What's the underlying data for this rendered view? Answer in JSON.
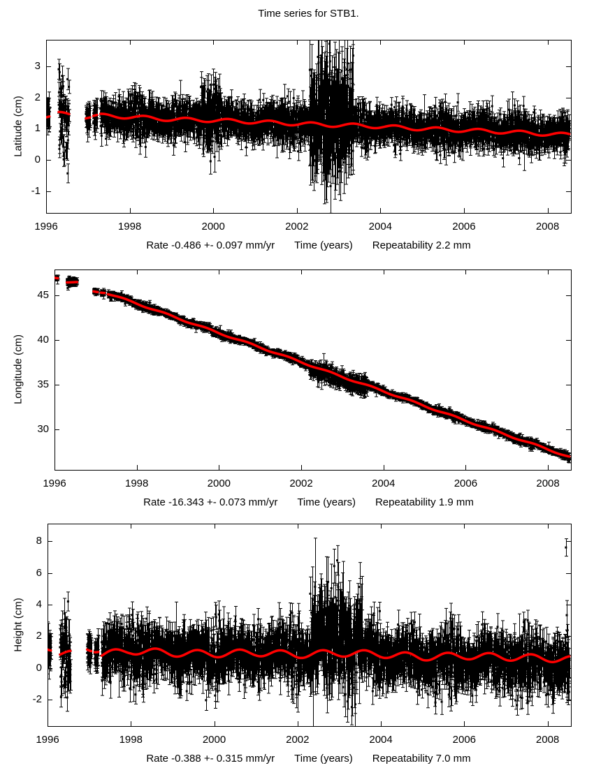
{
  "title": "Time series for STB1.",
  "colors": {
    "background": "#ffffff",
    "axis": "#000000",
    "points": "#000000",
    "trend_line": "#ff0000"
  },
  "chart_data": [
    {
      "id": "latitude",
      "type": "scatter",
      "ylabel": "Latitude (cm)",
      "xlabel": "Time (years)",
      "rate_label": "Rate -0.486 +- 0.097 mm/yr",
      "repeatability_label": "Repeatability 2.2 mm",
      "xlim": [
        1996,
        2008.56
      ],
      "ylim": [
        -1.7,
        3.85
      ],
      "xticks": [
        1996,
        1998,
        2000,
        2002,
        2004,
        2006,
        2008
      ],
      "yticks": [
        -1,
        0,
        1,
        2,
        3
      ],
      "trend": {
        "x": [
          1996.0,
          1996.08,
          1996.3,
          1996.55,
          1996.95,
          1997.05,
          1997.13,
          1997.22,
          1997.3,
          1998,
          1999,
          2000,
          2001,
          2002,
          2002.8,
          2003.5,
          2004,
          2005,
          2006,
          2007,
          2008,
          2008.52
        ],
        "y": [
          1.4,
          1.4,
          1.48,
          1.45,
          1.38,
          1.38,
          1.4,
          1.4,
          1.42,
          1.38,
          1.3,
          1.27,
          1.22,
          1.16,
          1.12,
          1.1,
          1.07,
          1.0,
          0.95,
          0.9,
          0.83,
          0.8
        ],
        "seasonal_amp": 0.06,
        "seasonal_phase": 0.1
      },
      "scatter": {
        "points_per_year": 250,
        "sigma": 0.28,
        "errorbar": 0.27,
        "segments": [
          {
            "x0": 1996.0,
            "x1": 1996.08,
            "sigma_mult": 0.7
          },
          {
            "x0": 1996.3,
            "x1": 1996.55,
            "sigma_mult": 1.9
          },
          {
            "x0": 1996.95,
            "x1": 1997.05,
            "sigma_mult": 0.7
          },
          {
            "x0": 1997.13,
            "x1": 1997.22,
            "sigma_mult": 0.7
          },
          {
            "x0": 1997.3,
            "x1": 2008.52,
            "sigma_mult": 1.0
          }
        ],
        "noisy_periods": [
          {
            "x0": 2002.3,
            "x1": 2003.35,
            "sigma_mult": 3.2,
            "err_mult": 3.2,
            "bias": 0.25
          },
          {
            "x0": 1999.7,
            "x1": 2000.15,
            "sigma_mult": 1.7,
            "err_mult": 1.5,
            "bias": 0.15
          }
        ]
      },
      "outliers": []
    },
    {
      "id": "longitude",
      "type": "scatter",
      "ylabel": "Longitude (cm)",
      "xlabel": "Time (years)",
      "rate_label": "Rate -16.343 +- 0.073 mm/yr",
      "repeatability_label": "Repeatability 1.9 mm",
      "xlim": [
        1996,
        2008.56
      ],
      "ylim": [
        25.5,
        47.9
      ],
      "xticks": [
        1996,
        1998,
        2000,
        2002,
        2004,
        2006,
        2008
      ],
      "yticks": [
        30,
        35,
        40,
        45
      ],
      "trend": {
        "x": [
          1996.0,
          1996.08,
          1996.3,
          1996.55,
          1996.95,
          1997.05,
          1997.13,
          1997.22,
          1997.3,
          1998,
          1999,
          2000,
          2001,
          2002,
          2003,
          2004,
          2005,
          2006,
          2007,
          2008,
          2008.52
        ],
        "y": [
          47.0,
          46.98,
          46.52,
          46.45,
          45.45,
          45.42,
          45.38,
          45.35,
          45.2,
          44.1,
          42.45,
          40.8,
          39.2,
          37.55,
          35.9,
          34.3,
          32.65,
          31.0,
          29.4,
          27.8,
          26.95
        ],
        "seasonal_amp": 0.08,
        "seasonal_phase": 0.45
      },
      "scatter": {
        "points_per_year": 250,
        "sigma": 0.18,
        "errorbar": 0.2,
        "segments": [
          {
            "x0": 1996.0,
            "x1": 1996.08,
            "sigma_mult": 0.6
          },
          {
            "x0": 1996.3,
            "x1": 1996.55,
            "sigma_mult": 0.9
          },
          {
            "x0": 1996.95,
            "x1": 1997.05,
            "sigma_mult": 0.7
          },
          {
            "x0": 1997.13,
            "x1": 1997.22,
            "sigma_mult": 0.7
          },
          {
            "x0": 1997.3,
            "x1": 2008.52,
            "sigma_mult": 1.0
          }
        ],
        "noisy_periods": [
          {
            "x0": 2002.2,
            "x1": 2003.6,
            "sigma_mult": 2.6,
            "err_mult": 2.4,
            "bias": -0.3
          }
        ]
      },
      "outliers": [
        {
          "x": 2007.55,
          "y": 27.9,
          "err": 0.3
        }
      ]
    },
    {
      "id": "height",
      "type": "scatter",
      "ylabel": "Height (cm)",
      "xlabel": "Time (years)",
      "rate_label": "Rate -0.388 +- 0.315 mm/yr",
      "repeatability_label": "Repeatability 7.0 mm",
      "xlim": [
        1996,
        2008.56
      ],
      "ylim": [
        -3.65,
        9.1
      ],
      "xticks": [
        1996,
        1998,
        2000,
        2002,
        2004,
        2006,
        2008
      ],
      "yticks": [
        -2,
        0,
        2,
        4,
        6,
        8
      ],
      "trend": {
        "x": [
          1996.0,
          1996.08,
          1996.3,
          1996.55,
          1996.95,
          1997.05,
          1997.13,
          1997.22,
          1997.3,
          1998,
          1999,
          2000,
          2001,
          2002,
          2003,
          2004,
          2005,
          2006,
          2007,
          2008,
          2008.52
        ],
        "y": [
          1.35,
          1.33,
          0.92,
          0.88,
          1.3,
          1.28,
          1.22,
          1.18,
          0.85,
          1.1,
          0.95,
          0.9,
          0.98,
          0.85,
          0.95,
          0.88,
          0.7,
          0.78,
          0.7,
          0.62,
          0.55
        ],
        "seasonal_amp": 0.22,
        "seasonal_phase": 0.35
      },
      "scatter": {
        "points_per_year": 250,
        "sigma": 0.8,
        "errorbar": 0.75,
        "segments": [
          {
            "x0": 1996.0,
            "x1": 1996.08,
            "sigma_mult": 0.5
          },
          {
            "x0": 1996.3,
            "x1": 1996.55,
            "sigma_mult": 1.3
          },
          {
            "x0": 1996.95,
            "x1": 1997.05,
            "sigma_mult": 0.5
          },
          {
            "x0": 1997.13,
            "x1": 1997.22,
            "sigma_mult": 0.5
          },
          {
            "x0": 1997.3,
            "x1": 2008.52,
            "sigma_mult": 1.0
          }
        ],
        "noisy_periods": [
          {
            "x0": 2002.3,
            "x1": 2003.55,
            "sigma_mult": 2.1,
            "err_mult": 1.7,
            "bias": 0.9
          },
          {
            "x0": 2004.2,
            "x1": 2008.52,
            "sigma_mult": 1.05,
            "err_mult": 1.0,
            "bias": -0.25
          }
        ]
      },
      "outliers": [
        {
          "x": 2008.44,
          "y": 7.6,
          "err": 0.55
        },
        {
          "x": 2008.47,
          "y": 2.35,
          "err": 0.4
        }
      ]
    }
  ]
}
